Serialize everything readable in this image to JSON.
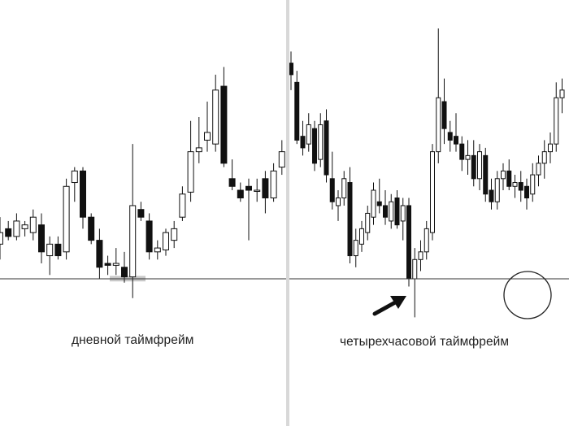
{
  "captions": {
    "left": "дневной таймфрейм",
    "right": "четырехчасовой таймфрейм"
  },
  "colors": {
    "candle": "#111111",
    "support_line": "#333333",
    "highlight": "#c8c8c8",
    "arrow": "#111111",
    "separator": "#d8d8d8"
  },
  "chart_data": [
    {
      "type": "candlestick",
      "title": "",
      "support_level": 10,
      "ylim": [
        0,
        140
      ],
      "highlight_range": [
        9.5,
        11.5
      ],
      "candles": [
        {
          "o": 28,
          "h": 42,
          "l": 20,
          "c": 34
        },
        {
          "o": 36,
          "h": 40,
          "l": 30,
          "c": 32
        },
        {
          "o": 32,
          "h": 44,
          "l": 30,
          "c": 40
        },
        {
          "o": 36,
          "h": 40,
          "l": 32,
          "c": 38
        },
        {
          "o": 34,
          "h": 46,
          "l": 30,
          "c": 42
        },
        {
          "o": 38,
          "h": 44,
          "l": 18,
          "c": 24
        },
        {
          "o": 22,
          "h": 32,
          "l": 12,
          "c": 28
        },
        {
          "o": 28,
          "h": 32,
          "l": 20,
          "c": 22
        },
        {
          "o": 24,
          "h": 62,
          "l": 20,
          "c": 58
        },
        {
          "o": 60,
          "h": 68,
          "l": 50,
          "c": 66
        },
        {
          "o": 66,
          "h": 68,
          "l": 36,
          "c": 42
        },
        {
          "o": 42,
          "h": 44,
          "l": 28,
          "c": 30
        },
        {
          "o": 30,
          "h": 36,
          "l": 10,
          "c": 16
        },
        {
          "o": 18,
          "h": 22,
          "l": 12,
          "c": 17
        },
        {
          "o": 17,
          "h": 26,
          "l": 12,
          "c": 18
        },
        {
          "o": 16,
          "h": 24,
          "l": 8,
          "c": 11
        },
        {
          "o": 11,
          "h": 80,
          "l": 0,
          "c": 48
        },
        {
          "o": 46,
          "h": 50,
          "l": 40,
          "c": 42
        },
        {
          "o": 40,
          "h": 44,
          "l": 20,
          "c": 24
        },
        {
          "o": 24,
          "h": 30,
          "l": 20,
          "c": 26
        },
        {
          "o": 25,
          "h": 36,
          "l": 22,
          "c": 34
        },
        {
          "o": 30,
          "h": 40,
          "l": 26,
          "c": 36
        },
        {
          "o": 42,
          "h": 58,
          "l": 40,
          "c": 54
        },
        {
          "o": 55,
          "h": 92,
          "l": 50,
          "c": 76
        },
        {
          "o": 76,
          "h": 94,
          "l": 70,
          "c": 78
        },
        {
          "o": 82,
          "h": 102,
          "l": 76,
          "c": 86
        },
        {
          "o": 80,
          "h": 116,
          "l": 76,
          "c": 108
        },
        {
          "o": 110,
          "h": 120,
          "l": 68,
          "c": 70
        },
        {
          "o": 62,
          "h": 72,
          "l": 56,
          "c": 58
        },
        {
          "o": 56,
          "h": 60,
          "l": 50,
          "c": 52
        },
        {
          "o": 58,
          "h": 62,
          "l": 30,
          "c": 56
        },
        {
          "o": 56,
          "h": 62,
          "l": 50,
          "c": 56
        },
        {
          "o": 62,
          "h": 66,
          "l": 44,
          "c": 52
        },
        {
          "o": 52,
          "h": 70,
          "l": 50,
          "c": 66
        },
        {
          "o": 68,
          "h": 82,
          "l": 64,
          "c": 76
        }
      ]
    },
    {
      "type": "candlestick",
      "title": "",
      "support_level": 10,
      "ylim": [
        0,
        140
      ],
      "highlight_candle": 40,
      "candles": [
        {
          "o": 122,
          "h": 128,
          "l": 108,
          "c": 116
        },
        {
          "o": 112,
          "h": 118,
          "l": 80,
          "c": 82
        },
        {
          "o": 84,
          "h": 92,
          "l": 74,
          "c": 78
        },
        {
          "o": 80,
          "h": 96,
          "l": 76,
          "c": 90
        },
        {
          "o": 88,
          "h": 92,
          "l": 66,
          "c": 70
        },
        {
          "o": 72,
          "h": 96,
          "l": 68,
          "c": 90
        },
        {
          "o": 92,
          "h": 98,
          "l": 60,
          "c": 64
        },
        {
          "o": 62,
          "h": 76,
          "l": 46,
          "c": 50
        },
        {
          "o": 48,
          "h": 56,
          "l": 40,
          "c": 52
        },
        {
          "o": 52,
          "h": 66,
          "l": 48,
          "c": 62
        },
        {
          "o": 60,
          "h": 68,
          "l": 18,
          "c": 22
        },
        {
          "o": 22,
          "h": 36,
          "l": 16,
          "c": 30
        },
        {
          "o": 28,
          "h": 40,
          "l": 24,
          "c": 36
        },
        {
          "o": 34,
          "h": 48,
          "l": 30,
          "c": 44
        },
        {
          "o": 42,
          "h": 60,
          "l": 38,
          "c": 56
        },
        {
          "o": 50,
          "h": 62,
          "l": 44,
          "c": 48
        },
        {
          "o": 48,
          "h": 56,
          "l": 38,
          "c": 42
        },
        {
          "o": 40,
          "h": 54,
          "l": 36,
          "c": 50
        },
        {
          "o": 52,
          "h": 56,
          "l": 36,
          "c": 38
        },
        {
          "o": 40,
          "h": 52,
          "l": 30,
          "c": 48
        },
        {
          "o": 48,
          "h": 52,
          "l": 6,
          "c": 10
        },
        {
          "o": 10,
          "h": 26,
          "l": -10,
          "c": 20
        },
        {
          "o": 20,
          "h": 30,
          "l": 14,
          "c": 24
        },
        {
          "o": 24,
          "h": 40,
          "l": 20,
          "c": 36
        },
        {
          "o": 34,
          "h": 80,
          "l": 30,
          "c": 76
        },
        {
          "o": 76,
          "h": 140,
          "l": 70,
          "c": 104
        },
        {
          "o": 102,
          "h": 114,
          "l": 80,
          "c": 88
        },
        {
          "o": 86,
          "h": 92,
          "l": 76,
          "c": 82
        },
        {
          "o": 84,
          "h": 96,
          "l": 76,
          "c": 80
        },
        {
          "o": 80,
          "h": 84,
          "l": 66,
          "c": 72
        },
        {
          "o": 72,
          "h": 82,
          "l": 64,
          "c": 74
        },
        {
          "o": 74,
          "h": 82,
          "l": 58,
          "c": 62
        },
        {
          "o": 62,
          "h": 80,
          "l": 56,
          "c": 76
        },
        {
          "o": 74,
          "h": 78,
          "l": 50,
          "c": 54
        },
        {
          "o": 56,
          "h": 62,
          "l": 46,
          "c": 50
        },
        {
          "o": 50,
          "h": 66,
          "l": 46,
          "c": 62
        },
        {
          "o": 62,
          "h": 70,
          "l": 56,
          "c": 66
        },
        {
          "o": 66,
          "h": 72,
          "l": 56,
          "c": 58
        },
        {
          "o": 58,
          "h": 64,
          "l": 52,
          "c": 60
        },
        {
          "o": 60,
          "h": 66,
          "l": 50,
          "c": 56
        },
        {
          "o": 58,
          "h": 62,
          "l": 46,
          "c": 52
        },
        {
          "o": 54,
          "h": 70,
          "l": 50,
          "c": 64
        },
        {
          "o": 64,
          "h": 74,
          "l": 58,
          "c": 70
        },
        {
          "o": 70,
          "h": 82,
          "l": 62,
          "c": 76
        },
        {
          "o": 76,
          "h": 86,
          "l": 70,
          "c": 80
        },
        {
          "o": 80,
          "h": 112,
          "l": 76,
          "c": 104
        },
        {
          "o": 104,
          "h": 114,
          "l": 96,
          "c": 108
        }
      ]
    }
  ]
}
